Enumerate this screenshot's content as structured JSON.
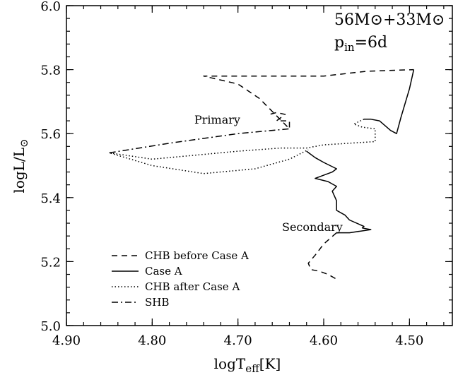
{
  "chart_data": {
    "type": "line",
    "title": "",
    "annotations": {
      "mass_label": "56M⊙+33M⊙",
      "period_label": "p",
      "period_sub": "in",
      "period_value": "=6d",
      "primary": "Primary",
      "secondary": "Secondary"
    },
    "xlabel": {
      "main": "logT",
      "sub": "eff",
      "tail": "[K]"
    },
    "ylabel": {
      "main": "logL/L",
      "sun": "⊙"
    },
    "xlim": [
      4.9,
      4.45
    ],
    "ylim": [
      5.0,
      6.0
    ],
    "x_ticks": [
      "4.90",
      "4.80",
      "4.70",
      "4.60",
      "4.50"
    ],
    "y_ticks": [
      "5.0",
      "5.2",
      "5.4",
      "5.6",
      "5.8",
      "6.0"
    ],
    "grid": false,
    "legend_position": "bottom-left",
    "legend": [
      {
        "label": "CHB before Case A",
        "dash": "8,6"
      },
      {
        "label": "Case A",
        "dash": ""
      },
      {
        "label": "CHB after Case A",
        "dash": "1.5,3"
      },
      {
        "label": "SHB",
        "dash": "9,4,2,4"
      }
    ],
    "series": [
      {
        "name": "CHB before Case A",
        "dash": "8,6",
        "points": [
          [
            4.662,
            5.661
          ],
          [
            4.655,
            5.666
          ],
          [
            4.645,
            5.66
          ],
          [
            4.655,
            5.64
          ],
          [
            4.64,
            5.64
          ],
          [
            4.64,
            5.615
          ],
          [
            4.675,
            5.71
          ],
          [
            4.7,
            5.755
          ],
          [
            4.74,
            5.78
          ],
          [
            4.6,
            5.78
          ],
          [
            4.55,
            5.795
          ],
          [
            4.495,
            5.8
          ]
        ]
      },
      {
        "name": "Case A",
        "dash": "",
        "points": [
          [
            4.495,
            5.8
          ],
          [
            4.5,
            5.74
          ],
          [
            4.51,
            5.65
          ],
          [
            4.515,
            5.6
          ],
          [
            4.522,
            5.61
          ],
          [
            4.535,
            5.64
          ],
          [
            4.545,
            5.645
          ],
          [
            4.553,
            5.645
          ]
        ]
      },
      {
        "name": "CHB after Case A",
        "dash": "1.5,3",
        "points": [
          [
            4.553,
            5.645
          ],
          [
            4.565,
            5.63
          ],
          [
            4.555,
            5.62
          ],
          [
            4.54,
            5.615
          ],
          [
            4.54,
            5.575
          ],
          [
            4.6,
            5.565
          ],
          [
            4.62,
            5.555
          ],
          [
            4.65,
            5.555
          ],
          [
            4.7,
            5.545
          ],
          [
            4.8,
            5.52
          ],
          [
            4.85,
            5.54
          ],
          [
            4.8,
            5.5
          ],
          [
            4.74,
            5.475
          ],
          [
            4.68,
            5.49
          ],
          [
            4.64,
            5.52
          ],
          [
            4.618,
            5.55
          ]
        ]
      },
      {
        "name": "SHB",
        "dash": "9,4,2,4",
        "points": [
          [
            4.85,
            5.54
          ],
          [
            4.78,
            5.57
          ],
          [
            4.7,
            5.6
          ],
          [
            4.64,
            5.615
          ]
        ]
      },
      {
        "name": "Secondary Case A",
        "dash": "",
        "points": [
          [
            4.62,
            5.545
          ],
          [
            4.61,
            5.525
          ],
          [
            4.6,
            5.51
          ],
          [
            4.585,
            5.49
          ],
          [
            4.59,
            5.48
          ],
          [
            4.6,
            5.47
          ],
          [
            4.61,
            5.46
          ],
          [
            4.595,
            5.45
          ],
          [
            4.585,
            5.435
          ],
          [
            4.59,
            5.42
          ],
          [
            4.585,
            5.39
          ],
          [
            4.585,
            5.36
          ],
          [
            4.575,
            5.345
          ],
          [
            4.57,
            5.33
          ],
          [
            4.553,
            5.31
          ],
          [
            4.555,
            5.305
          ],
          [
            4.545,
            5.3
          ],
          [
            4.57,
            5.29
          ],
          [
            4.585,
            5.29
          ]
        ]
      },
      {
        "name": "Secondary CHB before Case A",
        "dash": "8,6",
        "points": [
          [
            4.585,
            5.29
          ],
          [
            4.6,
            5.255
          ],
          [
            4.61,
            5.22
          ],
          [
            4.618,
            5.195
          ],
          [
            4.615,
            5.175
          ],
          [
            4.605,
            5.17
          ],
          [
            4.595,
            5.16
          ],
          [
            4.585,
            5.145
          ]
        ]
      }
    ]
  }
}
